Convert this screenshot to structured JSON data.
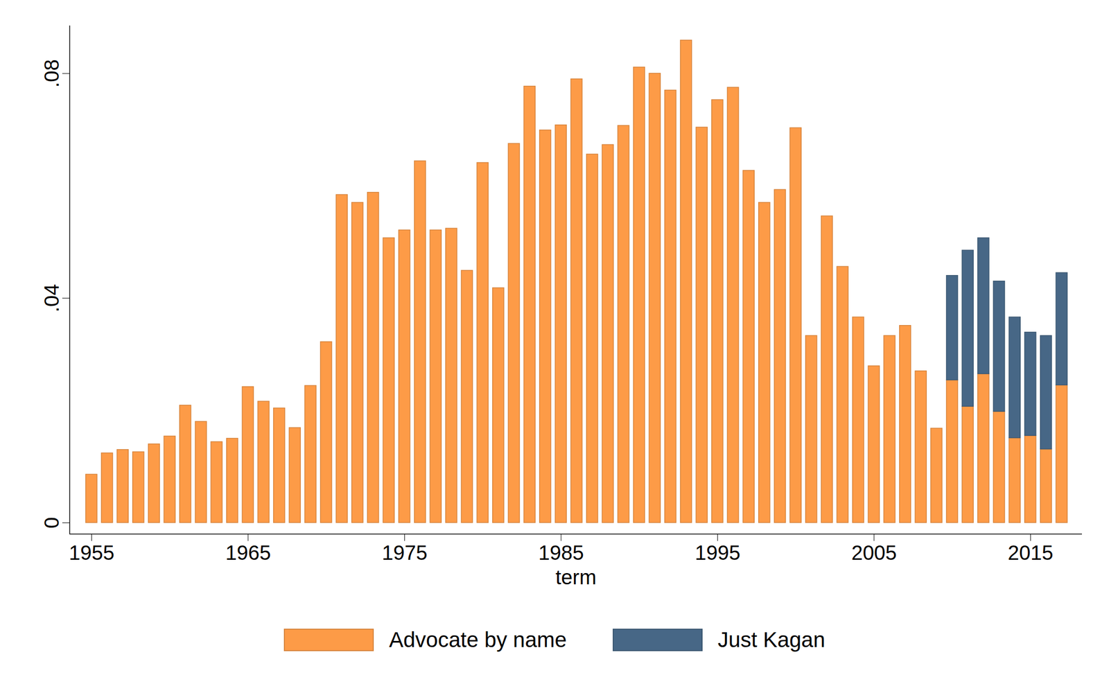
{
  "chart_data": {
    "type": "bar",
    "stacked": true,
    "legend": "bottom",
    "xlabel": "term",
    "x": [
      1955,
      1956,
      1957,
      1958,
      1959,
      1960,
      1961,
      1962,
      1963,
      1964,
      1965,
      1966,
      1967,
      1968,
      1969,
      1970,
      1971,
      1972,
      1973,
      1974,
      1975,
      1976,
      1977,
      1978,
      1979,
      1980,
      1981,
      1982,
      1983,
      1984,
      1985,
      1986,
      1987,
      1988,
      1989,
      1990,
      1991,
      1992,
      1993,
      1994,
      1995,
      1996,
      1997,
      1998,
      1999,
      2000,
      2001,
      2002,
      2003,
      2004,
      2005,
      2006,
      2007,
      2008,
      2009,
      2010,
      2011,
      2012,
      2013,
      2014,
      2015,
      2016,
      2017
    ],
    "series": [
      {
        "name": "Advocate by name",
        "color": "#fd9b47",
        "values": [
          0.0086,
          0.0124,
          0.013,
          0.0126,
          0.014,
          0.0154,
          0.0209,
          0.018,
          0.0144,
          0.015,
          0.0242,
          0.0216,
          0.0204,
          0.0169,
          0.0244,
          0.0322,
          0.0584,
          0.057,
          0.0588,
          0.0507,
          0.0521,
          0.0644,
          0.0521,
          0.0524,
          0.0449,
          0.0641,
          0.0418,
          0.0675,
          0.0777,
          0.0699,
          0.0708,
          0.079,
          0.0656,
          0.0673,
          0.0707,
          0.0811,
          0.08,
          0.077,
          0.0859,
          0.0704,
          0.0753,
          0.0775,
          0.0627,
          0.057,
          0.0593,
          0.0703,
          0.0333,
          0.0546,
          0.0456,
          0.0366,
          0.0279,
          0.0333,
          0.0351,
          0.027,
          0.0168,
          0.0254,
          0.0207,
          0.0265,
          0.0198,
          0.0151,
          0.0155,
          0.0131,
          0.0245
        ]
      },
      {
        "name": "Just Kagan",
        "color": "#476786",
        "values": [
          null,
          null,
          null,
          null,
          null,
          null,
          null,
          null,
          null,
          null,
          null,
          null,
          null,
          null,
          null,
          null,
          null,
          null,
          null,
          null,
          null,
          null,
          null,
          null,
          null,
          null,
          null,
          null,
          null,
          null,
          null,
          null,
          null,
          null,
          null,
          null,
          null,
          null,
          null,
          null,
          null,
          null,
          null,
          null,
          null,
          null,
          null,
          null,
          null,
          null,
          null,
          null,
          null,
          null,
          null,
          0.0186,
          0.0278,
          0.0242,
          0.0232,
          0.0215,
          0.0184,
          0.0202,
          0.02
        ]
      }
    ],
    "xlim": [
      1953.6,
      2018.3
    ],
    "xticks": [
      1955,
      1965,
      1975,
      1985,
      1995,
      2005,
      2015
    ],
    "ylim": [
      -0.002,
      0.0885
    ],
    "yticks": [
      {
        "value": 0,
        "label": "0"
      },
      {
        "value": 0.04,
        "label": ".04"
      },
      {
        "value": 0.08,
        "label": ".08"
      }
    ]
  }
}
